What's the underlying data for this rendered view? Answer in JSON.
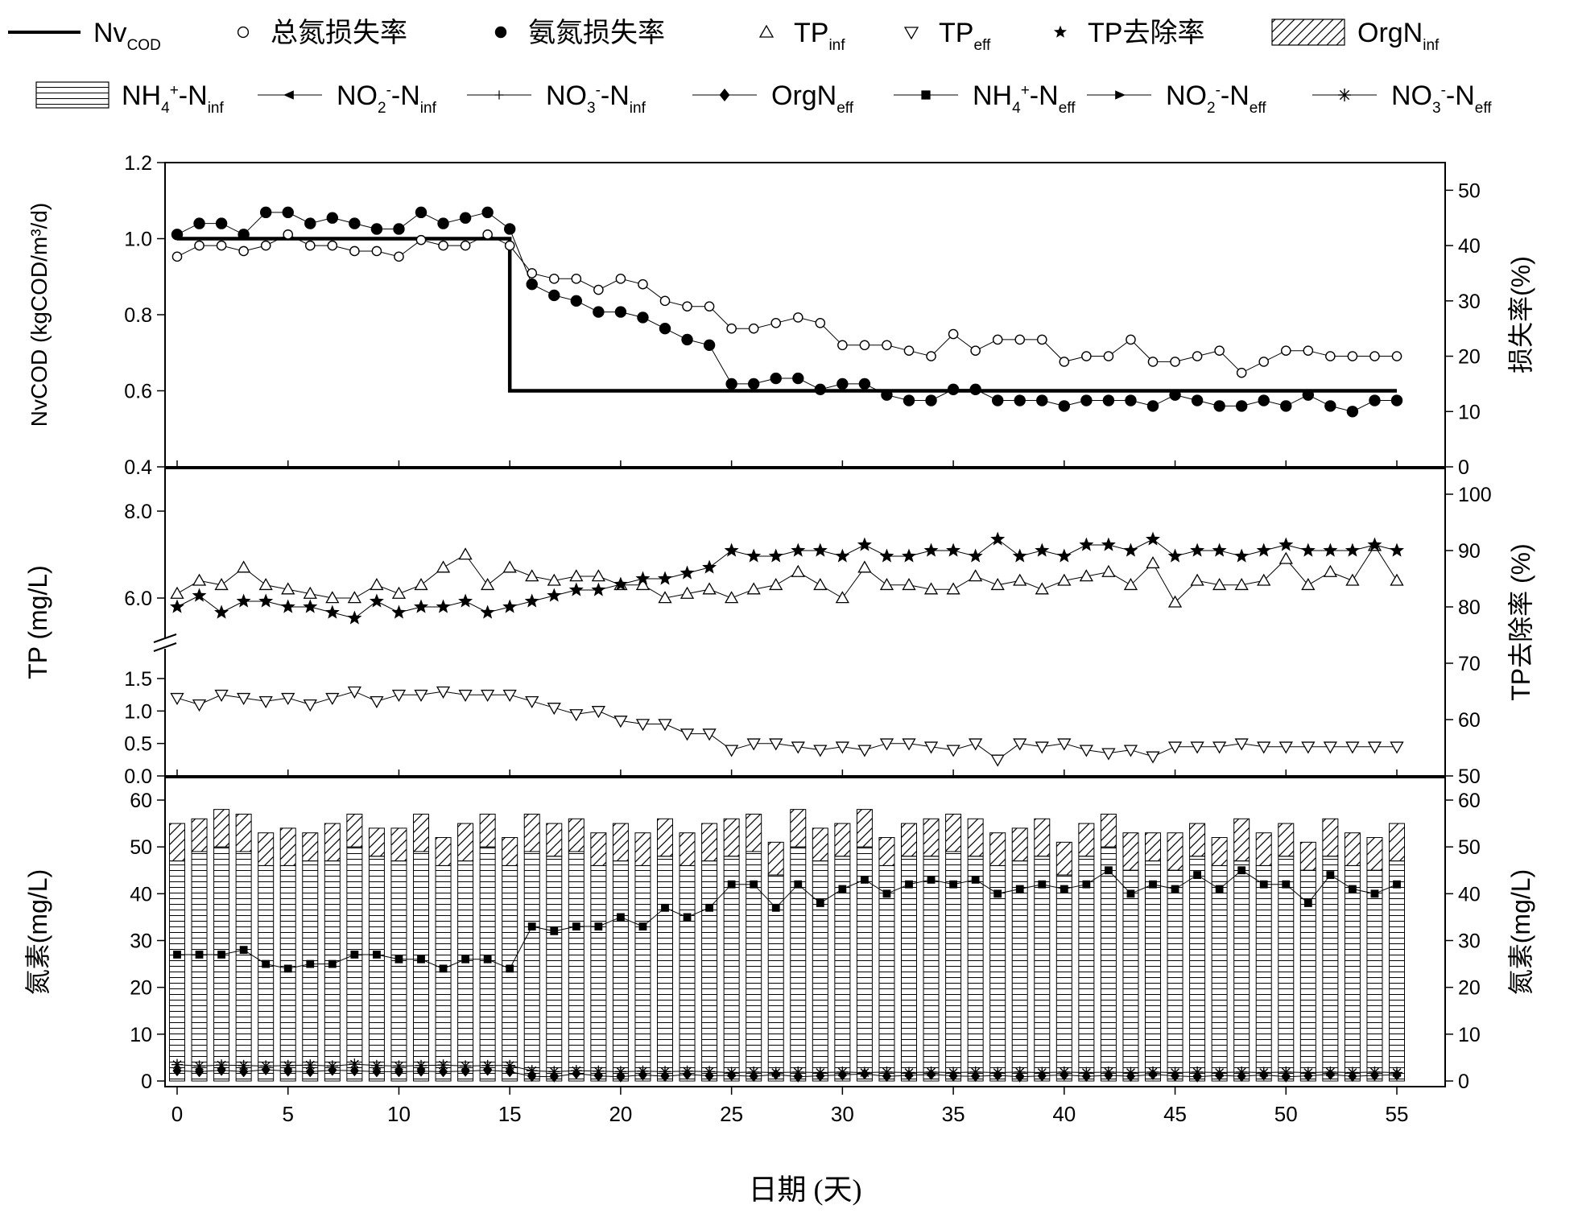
{
  "chart_data": {
    "type": "line",
    "x_label": "日期 (天)",
    "x_range": [
      0,
      55
    ],
    "x_ticks": [
      0,
      5,
      10,
      15,
      20,
      25,
      30,
      35,
      40,
      45,
      50,
      55
    ],
    "legend": {
      "row1": [
        {
          "sym": "line",
          "label": "Nv",
          "sub": "COD"
        },
        {
          "sym": "open-circle",
          "label": "总氮损失率"
        },
        {
          "sym": "filled-circle",
          "label": "氨氮损失率"
        },
        {
          "sym": "triangle-up",
          "label": "TP",
          "sub": "inf"
        },
        {
          "sym": "triangle-down",
          "label": "TP",
          "sub": "eff"
        },
        {
          "sym": "star",
          "label": "TP去除率"
        },
        {
          "sym": "hatch-diag",
          "label": "OrgN",
          "sub": "inf"
        }
      ],
      "row2": [
        {
          "sym": "hatch-horiz",
          "label": "NH",
          "sub": "4",
          "sup": "+",
          "tail": "-N",
          "sub2": "inf"
        },
        {
          "sym": "tri-left",
          "label": "NO",
          "sub": "2",
          "sup": "-",
          "tail": "-N",
          "sub2": "inf"
        },
        {
          "sym": "plus",
          "label": "NO",
          "sub": "3",
          "sup": "-",
          "tail": "-N",
          "sub2": "inf"
        },
        {
          "sym": "diamond",
          "label": "OrgN",
          "sub": "eff"
        },
        {
          "sym": "square",
          "label": "NH",
          "sub": "4",
          "sup": "+",
          "tail": "-N",
          "sub2": "eff"
        },
        {
          "sym": "tri-right",
          "label": "NO",
          "sub": "2",
          "sup": "-",
          "tail": "-N",
          "sub2": "eff"
        },
        {
          "sym": "asterisk",
          "label": "NO",
          "sub": "3",
          "sup": "-",
          "tail": "-N",
          "sub2": "eff"
        }
      ]
    },
    "panels": [
      {
        "id": "top",
        "y_left_label": "NvCOD (kgCOD/m³/d)",
        "y_left_range": [
          0.4,
          1.2
        ],
        "y_left_ticks": [
          "0.4",
          "0.6",
          "0.8",
          "1.0",
          "1.2"
        ],
        "y_right_label": "损失率(%)",
        "y_right_range": [
          0,
          55
        ],
        "y_right_ticks": [
          "0",
          "10",
          "20",
          "30",
          "40",
          "50"
        ],
        "series": [
          {
            "name": "Nv_COD",
            "type": "step",
            "axis": "left",
            "x": [
              0,
              15,
              15,
              55
            ],
            "y": [
              1.0,
              1.0,
              0.6,
              0.6
            ]
          },
          {
            "name": "总氮损失率",
            "axis": "right",
            "marker": "open-circle",
            "y": [
              38,
              40,
              40,
              39,
              40,
              42,
              40,
              40,
              39,
              39,
              38,
              41,
              40,
              40,
              42,
              40,
              35,
              34,
              34,
              32,
              34,
              33,
              30,
              29,
              29,
              25,
              25,
              26,
              27,
              26,
              22,
              22,
              22,
              21,
              20,
              24,
              21,
              23,
              23,
              23,
              19,
              20,
              20,
              23,
              19,
              19,
              20,
              21,
              17,
              19,
              21,
              21,
              20,
              20,
              20,
              20
            ]
          },
          {
            "name": "氨氮损失率",
            "axis": "right",
            "marker": "filled-circle",
            "y": [
              42,
              44,
              44,
              42,
              46,
              46,
              44,
              45,
              44,
              43,
              43,
              46,
              44,
              45,
              46,
              43,
              33,
              31,
              30,
              28,
              28,
              27,
              25,
              23,
              22,
              15,
              15,
              16,
              16,
              14,
              15,
              15,
              13,
              12,
              12,
              14,
              14,
              12,
              12,
              12,
              11,
              12,
              12,
              12,
              11,
              13,
              12,
              11,
              11,
              12,
              11,
              13,
              11,
              10,
              12,
              12
            ]
          }
        ]
      },
      {
        "id": "middle",
        "y_left_label": "TP (mg/L)",
        "y_left_ticks_upper": [
          "6.0",
          "8.0"
        ],
        "y_left_ticks_lower": [
          "0.0",
          "0.5",
          "1.0",
          "1.5"
        ],
        "y_right_label": "TP去除率 (%)",
        "y_right_range": [
          50,
          100
        ],
        "y_right_ticks": [
          "50",
          "60",
          "70",
          "80",
          "90",
          "100"
        ],
        "series": [
          {
            "name": "TP_inf",
            "axis": "left",
            "marker": "triangle-up",
            "y": [
              6.1,
              6.4,
              6.3,
              6.7,
              6.3,
              6.2,
              6.1,
              6.0,
              6.0,
              6.3,
              6.1,
              6.3,
              6.7,
              7.0,
              6.3,
              6.7,
              6.5,
              6.4,
              6.5,
              6.5,
              6.3,
              6.3,
              6.0,
              6.1,
              6.2,
              6.0,
              6.2,
              6.3,
              6.6,
              6.3,
              6.0,
              6.7,
              6.3,
              6.3,
              6.2,
              6.2,
              6.5,
              6.3,
              6.4,
              6.2,
              6.4,
              6.5,
              6.6,
              6.3,
              6.8,
              5.9,
              6.4,
              6.3,
              6.3,
              6.4,
              6.9,
              6.3,
              6.6,
              6.4,
              7.2,
              6.4
            ]
          },
          {
            "name": "TP_eff",
            "axis": "left",
            "marker": "triangle-down",
            "y": [
              1.2,
              1.1,
              1.25,
              1.2,
              1.15,
              1.2,
              1.1,
              1.2,
              1.3,
              1.15,
              1.25,
              1.25,
              1.3,
              1.25,
              1.25,
              1.25,
              1.15,
              1.05,
              0.95,
              1.0,
              0.85,
              0.8,
              0.8,
              0.65,
              0.65,
              0.4,
              0.5,
              0.5,
              0.45,
              0.4,
              0.45,
              0.4,
              0.5,
              0.5,
              0.45,
              0.4,
              0.5,
              0.25,
              0.5,
              0.45,
              0.5,
              0.4,
              0.35,
              0.4,
              0.3,
              0.45,
              0.45,
              0.45,
              0.5,
              0.45,
              0.45,
              0.45,
              0.45,
              0.45,
              0.45,
              0.45
            ]
          },
          {
            "name": "TP去除率",
            "axis": "right",
            "marker": "star",
            "y": [
              80,
              82,
              79,
              81,
              81,
              80,
              80,
              79,
              78,
              81,
              79,
              80,
              80,
              81,
              79,
              80,
              81,
              82,
              83,
              83,
              84,
              85,
              85,
              86,
              87,
              90,
              89,
              89,
              90,
              90,
              89,
              91,
              89,
              89,
              90,
              90,
              89,
              92,
              89,
              90,
              89,
              91,
              91,
              90,
              92,
              89,
              90,
              90,
              89,
              90,
              91,
              90,
              90,
              90,
              91,
              90
            ]
          }
        ]
      },
      {
        "id": "bottom",
        "y_left_label": "氮素(mg/L)",
        "y_left_range": [
          0,
          62
        ],
        "y_left_ticks": [
          "0",
          "10",
          "20",
          "30",
          "40",
          "50",
          "60"
        ],
        "y_right_label": "氮素(mg/L)",
        "y_right_ticks": [
          "0",
          "10",
          "20",
          "30",
          "40",
          "50",
          "60"
        ],
        "stack_series": [
          {
            "name": "NH4+-N_inf",
            "pattern": "horiz",
            "y": [
              47,
              49,
              50,
              49,
              46,
              46,
              47,
              47,
              50,
              48,
              47,
              49,
              46,
              47,
              50,
              46,
              49,
              48,
              49,
              46,
              47,
              46,
              48,
              46,
              47,
              48,
              49,
              44,
              50,
              47,
              48,
              50,
              46,
              48,
              48,
              49,
              48,
              46,
              47,
              48,
              44,
              48,
              50,
              45,
              47,
              45,
              48,
              46,
              47,
              46,
              48,
              45,
              48,
              46,
              45,
              47
            ]
          },
          {
            "name": "OrgN_inf",
            "pattern": "diag",
            "y": [
              8,
              7,
              8,
              8,
              7,
              8,
              6,
              8,
              7,
              6,
              7,
              8,
              6,
              8,
              7,
              6,
              8,
              7,
              7,
              7,
              8,
              7,
              8,
              7,
              8,
              8,
              8,
              7,
              8,
              7,
              7,
              8,
              6,
              7,
              8,
              8,
              8,
              7,
              7,
              8,
              7,
              7,
              7,
              8,
              6,
              8,
              7,
              6,
              9,
              7,
              7,
              6,
              8,
              7,
              7,
              8
            ]
          }
        ],
        "series": [
          {
            "name": "NH4+-N_eff",
            "marker": "square",
            "y": [
              27,
              27,
              27,
              28,
              25,
              24,
              25,
              25,
              27,
              27,
              26,
              26,
              24,
              26,
              26,
              24,
              33,
              32,
              33,
              33,
              35,
              33,
              37,
              35,
              37,
              42,
              42,
              37,
              42,
              38,
              41,
              43,
              40,
              42,
              43,
              42,
              43,
              40,
              41,
              42,
              41,
              42,
              45,
              40,
              42,
              41,
              44,
              41,
              45,
              42,
              42,
              38,
              44,
              41,
              40,
              42
            ]
          },
          {
            "name": "NO3--N_eff",
            "marker": "asterisk",
            "y": [
              3.5,
              3.2,
              3.4,
              3.3,
              3.2,
              3.3,
              3.4,
              3.2,
              3.6,
              3.3,
              3.2,
              3.3,
              3.4,
              3.2,
              3.3,
              3.3,
              2.2,
              2.0,
              2.2,
              2.1,
              2.0,
              2.1,
              2.0,
              2.1,
              2.0,
              1.8,
              1.9,
              1.8,
              1.9,
              1.8,
              1.9,
              1.8,
              1.9,
              1.8,
              1.9,
              1.8,
              1.9,
              1.8,
              1.9,
              1.8,
              1.9,
              1.8,
              1.9,
              1.8,
              1.9,
              1.8,
              1.9,
              1.8,
              1.9,
              1.8,
              1.9,
              1.8,
              1.9,
              1.8,
              1.9,
              1.8
            ]
          },
          {
            "name": "OrgN_eff",
            "marker": "diamond",
            "y": [
              2.2,
              2.0,
              2.3,
              2.0,
              2.4,
              2.1,
              2.0,
              2.3,
              2.2,
              2.0,
              2.0,
              2.1,
              2.0,
              2.1,
              2.3,
              2.0,
              1.0,
              0.9,
              1.6,
              1.1,
              0.9,
              1.3,
              1.0,
              1.4,
              1.1,
              1.2,
              1.0,
              1.4,
              0.9,
              1.1,
              1.3,
              1.5,
              1.0,
              1.2,
              1.4,
              1.1,
              1.0,
              1.2,
              0.9,
              1.1,
              1.3,
              1.0,
              1.2,
              1.0,
              1.4,
              1.1,
              0.9,
              1.2,
              1.0,
              1.3,
              0.9,
              1.1,
              1.4,
              1.0,
              1.2,
              1.3
            ]
          }
        ]
      }
    ]
  }
}
